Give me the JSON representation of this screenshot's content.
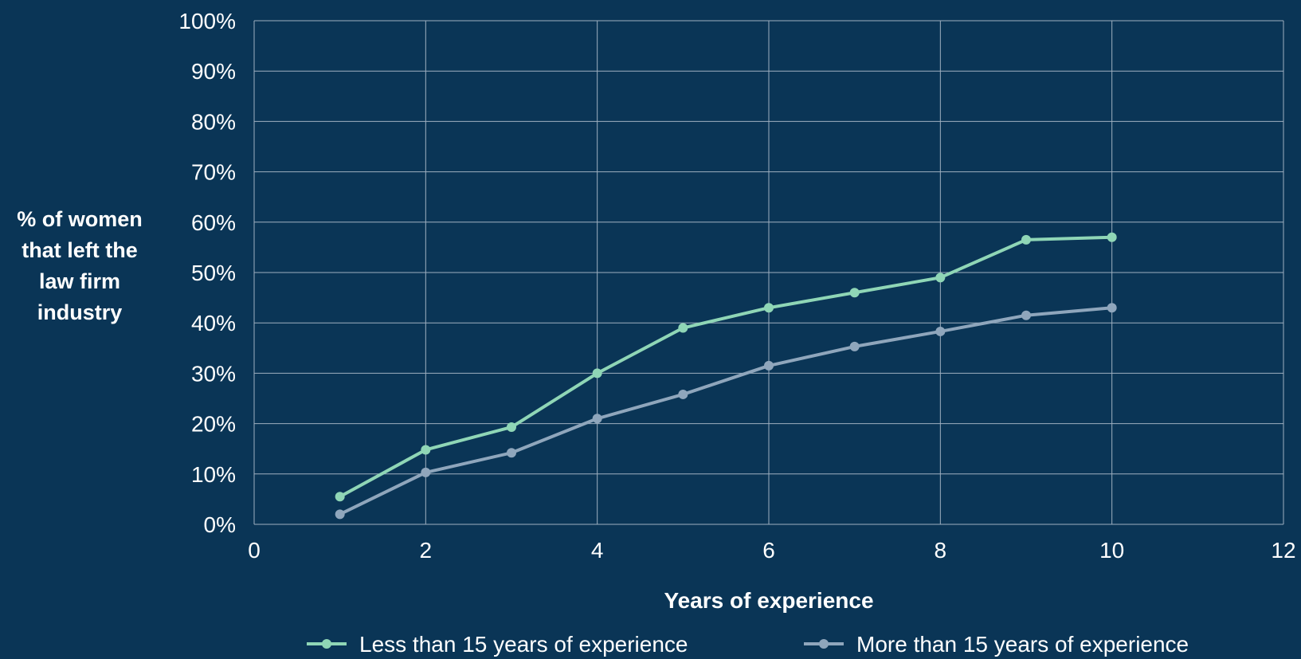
{
  "chart_data": {
    "type": "line",
    "xlabel": "Years of experience",
    "ylabel_lines": [
      "% of women",
      "that left the",
      "law firm",
      "industry"
    ],
    "xlim": [
      0,
      12
    ],
    "ylim": [
      0,
      100
    ],
    "x_ticks": [
      "0",
      "2",
      "4",
      "6",
      "8",
      "10",
      "12"
    ],
    "y_ticks": [
      "0%",
      "10%",
      "20%",
      "30%",
      "40%",
      "50%",
      "60%",
      "70%",
      "80%",
      "90%",
      "100%"
    ],
    "grid": true,
    "legend_position": "bottom",
    "x": [
      1,
      2,
      3,
      4,
      5,
      6,
      7,
      8,
      9,
      10
    ],
    "series": [
      {
        "name": "Less than 15 years of experience",
        "color": "#8fd6b6",
        "values": [
          5.5,
          14.8,
          19.3,
          30,
          39,
          43,
          46,
          49,
          56.5,
          57
        ]
      },
      {
        "name": "More than 15 years of experience",
        "color": "#8fa6bc",
        "values": [
          2,
          10.3,
          14.2,
          21,
          25.8,
          31.5,
          35.3,
          38.3,
          41.5,
          43
        ]
      }
    ]
  },
  "colors": {
    "background": "#0a3556",
    "grid": "#9fb0c0",
    "text": "#ffffff"
  }
}
